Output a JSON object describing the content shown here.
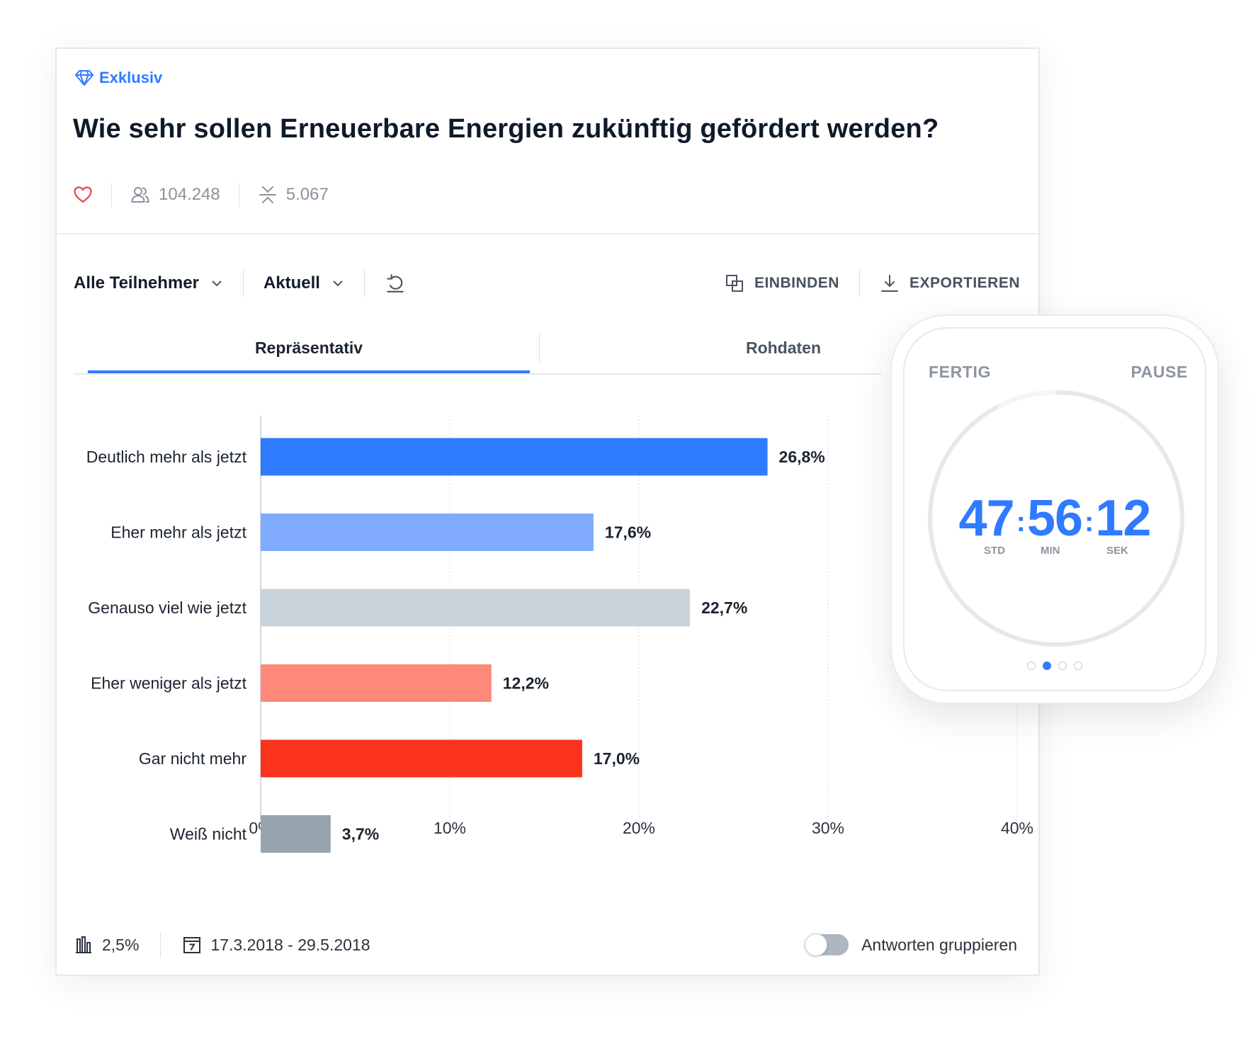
{
  "badge": {
    "label": "Exklusiv",
    "icon": "diamond-icon",
    "color": "#2f7bff"
  },
  "question": {
    "title": "Wie sehr sollen Erneuerbare Energien zukünftig gefördert werden?"
  },
  "stats": {
    "participants": "104.248",
    "comments": "5.067"
  },
  "toolbar": {
    "participant_filter": "Alle Teilnehmer",
    "time_filter": "Aktuell",
    "embed_label": "EINBINDEN",
    "export_label": "EXPORTIEREN"
  },
  "tabs": [
    {
      "label": "Repräsentativ",
      "active": true
    },
    {
      "label": "Rohdaten",
      "active": false
    }
  ],
  "chart_data": {
    "type": "bar",
    "orientation": "horizontal",
    "categories": [
      "Deutlich mehr als jetzt",
      "Eher mehr als jetzt",
      "Genauso viel wie jetzt",
      "Eher weniger als jetzt",
      "Gar nicht mehr",
      "Weiß nicht"
    ],
    "values": [
      26.8,
      17.6,
      22.7,
      12.2,
      17.0,
      3.7
    ],
    "value_labels": [
      "26,8%",
      "17,6%",
      "22,7%",
      "12,2%",
      "17,0%",
      "3,7%"
    ],
    "colors": [
      "#2f7bff",
      "#80abff",
      "#c9d3dc",
      "#fd8a78",
      "#fb321c",
      "#97a3ae"
    ],
    "xlim": [
      0,
      40
    ],
    "x_ticks": [
      0,
      10,
      20,
      30,
      40
    ],
    "x_tick_labels": [
      "0%",
      "10%",
      "20%",
      "30%",
      "40%"
    ],
    "grid": true
  },
  "footer": {
    "margin_of_error": "2,5%",
    "date_range": "17.3.2018 - 29.5.2018",
    "group_toggle_label": "Antworten gruppieren",
    "group_toggle_on": false
  },
  "watch": {
    "left_button": "FERTIG",
    "right_button": "PAUSE",
    "hours": "47",
    "minutes": "56",
    "seconds": "12",
    "hours_unit": "STD",
    "minutes_unit": "MIN",
    "seconds_unit": "SEK",
    "page_dots": 4,
    "active_dot": 1
  }
}
